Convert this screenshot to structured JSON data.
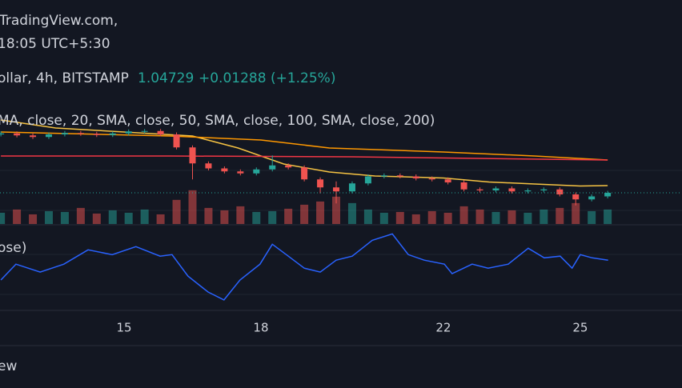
{
  "header": {
    "source": "TradingView.com,",
    "time": "18:05 UTC+5:30",
    "symbol": "ollar, 4h, BITSTAMP",
    "change": "+0.01288 (+1.25%)",
    "indicators": "MA, close, 20, SMA, close, 50, SMA, close, 100, SMA, close, 200)",
    "rsi_legend": "ose)",
    "footer": "ew"
  },
  "chart_data": {
    "type": "candlestick",
    "x": [
      12.3,
      12.65,
      13.0,
      13.35,
      13.7,
      14.05,
      14.4,
      14.75,
      15.1,
      15.45,
      15.8,
      16.15,
      16.5,
      16.85,
      17.2,
      17.55,
      17.9,
      18.25,
      18.6,
      18.95,
      19.3,
      19.65,
      20.0,
      20.35,
      20.7,
      21.05,
      21.4,
      21.75,
      22.1,
      22.45,
      22.8,
      23.15,
      23.5,
      23.85,
      24.2,
      24.55,
      24.9,
      25.25,
      25.6
    ],
    "open": [
      1.0765,
      1.077,
      1.076,
      1.0752,
      1.0765,
      1.0772,
      1.0768,
      1.0762,
      1.077,
      1.078,
      1.0782,
      1.0765,
      1.07,
      1.062,
      1.0595,
      1.058,
      1.057,
      1.059,
      1.061,
      1.06,
      1.054,
      1.05,
      1.048,
      1.052,
      1.0555,
      1.056,
      1.0555,
      1.0545,
      1.054,
      1.0525,
      1.049,
      1.0485,
      1.0495,
      1.048,
      1.0485,
      1.049,
      1.0465,
      1.044,
      1.0455
    ],
    "high": [
      1.078,
      1.078,
      1.077,
      1.0775,
      1.0782,
      1.0782,
      1.0778,
      1.078,
      1.079,
      1.0792,
      1.0792,
      1.0775,
      1.071,
      1.063,
      1.0605,
      1.059,
      1.06,
      1.066,
      1.062,
      1.061,
      1.055,
      1.053,
      1.053,
      1.0565,
      1.057,
      1.057,
      1.0565,
      1.0555,
      1.055,
      1.0535,
      1.05,
      1.0505,
      1.0505,
      1.0495,
      1.05,
      1.05,
      1.0475,
      1.0465,
      1.0483
    ],
    "low": [
      1.0755,
      1.075,
      1.0742,
      1.0742,
      1.0755,
      1.0758,
      1.0752,
      1.0752,
      1.076,
      1.077,
      1.0755,
      1.069,
      1.054,
      1.0585,
      1.057,
      1.056,
      1.056,
      1.058,
      1.059,
      1.053,
      1.047,
      1.042,
      1.047,
      1.051,
      1.0545,
      1.0545,
      1.0535,
      1.053,
      1.0515,
      1.048,
      1.0475,
      1.0475,
      1.047,
      1.047,
      1.0475,
      1.0455,
      1.041,
      1.043,
      1.0445
    ],
    "close": [
      1.077,
      1.076,
      1.0752,
      1.0765,
      1.0772,
      1.0768,
      1.0762,
      1.077,
      1.078,
      1.0782,
      1.0765,
      1.07,
      1.062,
      1.0595,
      1.058,
      1.057,
      1.059,
      1.061,
      1.06,
      1.054,
      1.05,
      1.048,
      1.052,
      1.0555,
      1.056,
      1.0555,
      1.0545,
      1.054,
      1.0525,
      1.049,
      1.0485,
      1.0495,
      1.048,
      1.0485,
      1.049,
      1.0465,
      1.044,
      1.0455,
      1.04729
    ],
    "volume": [
      14,
      18,
      12,
      16,
      15,
      20,
      13,
      17,
      14,
      18,
      12,
      30,
      42,
      20,
      17,
      22,
      15,
      16,
      19,
      24,
      28,
      34,
      26,
      18,
      14,
      15,
      12,
      16,
      14,
      22,
      18,
      15,
      17,
      14,
      18,
      20,
      26,
      16,
      18
    ],
    "up_color": "#26a69a",
    "down_color": "#ef5350",
    "xlim": [
      12.28,
      27.23
    ],
    "xticks": [
      15,
      18,
      22,
      25
    ],
    "ylim": [
      1.0317,
      1.0917
    ],
    "vlim": [
      0,
      100
    ],
    "lines": [
      {
        "color": "#f6c343",
        "x": [
          12.3,
          13.5,
          15,
          16.5,
          17.5,
          18.5,
          19.5,
          20.5,
          22,
          23,
          24,
          25,
          25.6
        ],
        "values": [
          1.0837,
          1.0797,
          1.0777,
          1.0757,
          1.0697,
          1.0617,
          1.0577,
          1.0557,
          1.0547,
          1.0527,
          1.0517,
          1.0507,
          1.0509
        ]
      },
      {
        "color": "#ff9800",
        "x": [
          12.3,
          16,
          18,
          19.5,
          22,
          24,
          25.6
        ],
        "values": [
          1.0777,
          1.0757,
          1.0737,
          1.0697,
          1.0677,
          1.0657,
          1.0637
        ]
      },
      {
        "color": "#f23645",
        "x": [
          12.3,
          16,
          20,
          25.6
        ],
        "values": [
          1.0657,
          1.0657,
          1.0653,
          1.0637
        ]
      }
    ],
    "rsi": {
      "color": "#2962ff",
      "ylim": [
        16,
        94
      ],
      "x": [
        12.3,
        12.63,
        13.16,
        13.68,
        14.21,
        14.74,
        15.26,
        15.79,
        16.05,
        16.4,
        16.84,
        17.19,
        17.54,
        17.98,
        18.25,
        18.6,
        18.95,
        19.3,
        19.65,
        20.0,
        20.44,
        20.88,
        21.23,
        21.58,
        22.02,
        22.19,
        22.63,
        22.98,
        23.42,
        23.86,
        24.21,
        24.56,
        24.82,
        25.0,
        25.26,
        25.61
      ],
      "values": [
        44.7,
        61.0,
        52.9,
        61.0,
        75.7,
        70.8,
        79.0,
        69.2,
        70.8,
        48.8,
        32.4,
        24.3,
        44.7,
        61.0,
        81.4,
        69.2,
        56.9,
        52.9,
        65.1,
        69.2,
        85.5,
        92.0,
        70.8,
        65.1,
        61.0,
        51.2,
        61.0,
        56.9,
        61.0,
        77.3,
        67.5,
        69.2,
        56.9,
        70.8,
        67.5,
        65.1
      ]
    }
  }
}
